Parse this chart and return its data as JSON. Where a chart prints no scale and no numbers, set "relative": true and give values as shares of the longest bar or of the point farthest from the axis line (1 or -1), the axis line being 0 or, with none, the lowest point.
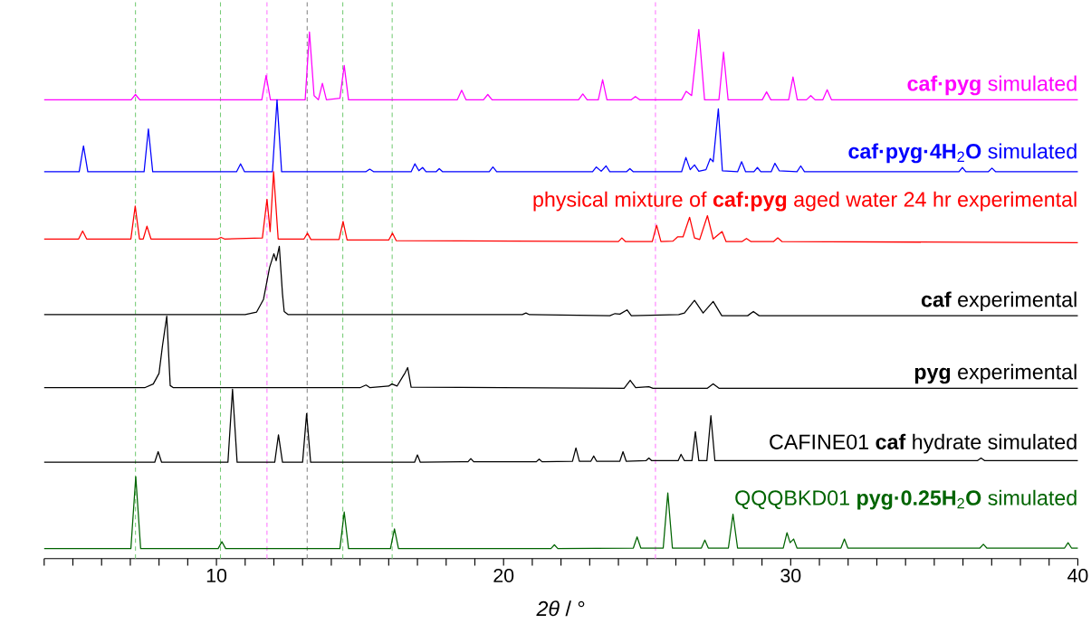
{
  "chart_data": {
    "type": "line",
    "relative": true,
    "xlabel": "*2θ* / °",
    "xlim": [
      4,
      40
    ],
    "xticks": [
      {
        "value": 4,
        "label": null
      },
      {
        "value": 5,
        "label": null
      },
      {
        "value": 6,
        "label": null
      },
      {
        "value": 7,
        "label": null
      },
      {
        "value": 8,
        "label": null
      },
      {
        "value": 9,
        "label": null
      },
      10,
      {
        "value": 11,
        "label": null
      },
      {
        "value": 12,
        "label": null
      },
      {
        "value": 13,
        "label": null
      },
      {
        "value": 14,
        "label": null
      },
      {
        "value": 15,
        "label": null
      },
      {
        "value": 16,
        "label": null
      },
      {
        "value": 17,
        "label": null
      },
      {
        "value": 18,
        "label": null
      },
      {
        "value": 19,
        "label": null
      },
      20,
      {
        "value": 21,
        "label": null
      },
      {
        "value": 22,
        "label": null
      },
      {
        "value": 23,
        "label": null
      },
      {
        "value": 24,
        "label": null
      },
      {
        "value": 25,
        "label": null
      },
      {
        "value": 26,
        "label": null
      },
      {
        "value": 27,
        "label": null
      },
      {
        "value": 28,
        "label": null
      },
      {
        "value": 29,
        "label": null
      },
      30,
      {
        "value": 31,
        "label": null
      },
      {
        "value": 32,
        "label": null
      },
      {
        "value": 33,
        "label": null
      },
      {
        "value": 34,
        "label": null
      },
      {
        "value": 35,
        "label": null
      },
      {
        "value": 36,
        "label": null
      },
      {
        "value": 37,
        "label": null
      },
      {
        "value": 38,
        "label": null
      },
      {
        "value": 39,
        "label": null
      },
      40
    ],
    "ref_lines": [
      {
        "axis": "x",
        "value": 7.18,
        "color": "#77cc77",
        "line_style": "dashed"
      },
      {
        "axis": "x",
        "value": 10.14,
        "color": "#77cc77",
        "line_style": "dashed"
      },
      {
        "axis": "x",
        "value": 11.76,
        "color": "#ff77ff",
        "line_style": "dashed"
      },
      {
        "axis": "x",
        "value": 13.16,
        "color": "#888888",
        "line_style": "dashed"
      },
      {
        "axis": "x",
        "value": 14.4,
        "color": "#77cc77",
        "line_style": "dashed"
      },
      {
        "axis": "x",
        "value": 16.12,
        "color": "#77cc77",
        "line_style": "dashed"
      },
      {
        "axis": "x",
        "value": 25.29,
        "color": "#ff77ff",
        "line_style": "dashed"
      }
    ],
    "series": [
      {
        "name": "**caf·pyg** simulated",
        "color": "#ff00ff",
        "x": [
          4,
          7.03,
          7.18,
          7.33,
          11.58,
          11.73,
          11.88,
          13.09,
          13.24,
          13.4,
          13.55,
          13.69,
          13.83,
          14.3,
          14.45,
          14.6,
          18.39,
          18.54,
          18.69,
          19.3,
          19.45,
          19.6,
          22.61,
          22.76,
          22.91,
          23.3,
          23.45,
          23.6,
          24.45,
          24.59,
          24.74,
          26.2,
          26.36,
          26.55,
          26.8,
          27.0,
          27.5,
          27.66,
          27.82,
          29.01,
          29.16,
          29.31,
          29.93,
          30.08,
          30.23,
          30.55,
          30.7,
          30.85,
          31.12,
          31.27,
          31.42,
          40
        ],
        "values": [
          0.867,
          0.867,
          0.877,
          0.867,
          0.867,
          0.913,
          0.867,
          0.867,
          0.995,
          0.875,
          0.867,
          0.898,
          0.867,
          0.87,
          0.932,
          0.867,
          0.867,
          0.885,
          0.867,
          0.867,
          0.877,
          0.867,
          0.867,
          0.878,
          0.867,
          0.867,
          0.905,
          0.867,
          0.867,
          0.873,
          0.867,
          0.867,
          0.883,
          0.875,
          1.0,
          0.867,
          0.867,
          0.957,
          0.867,
          0.867,
          0.882,
          0.867,
          0.867,
          0.91,
          0.867,
          0.867,
          0.875,
          0.867,
          0.867,
          0.886,
          0.867,
          0.867
        ]
      },
      {
        "name": "**caf·pyg·4H**$_{2}$**O** simulated",
        "color": "#0000ff",
        "x": [
          4,
          5.22,
          5.37,
          5.52,
          7.48,
          7.63,
          7.78,
          10.7,
          10.84,
          10.98,
          11.95,
          12.11,
          12.27,
          15.2,
          15.34,
          15.48,
          16.78,
          16.91,
          17.05,
          17.18,
          17.3,
          17.65,
          17.76,
          17.88,
          19.5,
          19.63,
          19.76,
          23.1,
          23.23,
          23.4,
          23.57,
          23.7,
          24.28,
          24.4,
          24.52,
          26.2,
          26.35,
          26.5,
          26.65,
          26.8,
          27.05,
          27.2,
          27.3,
          27.48,
          27.62,
          28.15,
          28.29,
          28.43,
          28.72,
          28.84,
          28.96,
          29.32,
          29.45,
          29.6,
          30.22,
          30.35,
          30.48,
          35.86,
          35.98,
          36.1,
          36.88,
          37.01,
          37.14,
          40
        ],
        "values": [
          0.731,
          0.731,
          0.78,
          0.731,
          0.731,
          0.812,
          0.731,
          0.731,
          0.746,
          0.731,
          0.731,
          0.867,
          0.731,
          0.731,
          0.736,
          0.731,
          0.731,
          0.746,
          0.733,
          0.739,
          0.731,
          0.731,
          0.737,
          0.731,
          0.731,
          0.74,
          0.731,
          0.731,
          0.74,
          0.732,
          0.742,
          0.731,
          0.731,
          0.737,
          0.731,
          0.731,
          0.758,
          0.735,
          0.744,
          0.732,
          0.735,
          0.756,
          0.75,
          0.85,
          0.733,
          0.731,
          0.75,
          0.731,
          0.731,
          0.739,
          0.731,
          0.731,
          0.747,
          0.733,
          0.731,
          0.742,
          0.731,
          0.731,
          0.739,
          0.731,
          0.731,
          0.738,
          0.731,
          0.731
        ]
      },
      {
        "name": "physical mixture of **caf:pyg** aged water 24 hr experimental",
        "color": "#ff0000",
        "x": [
          4,
          5.2,
          5.34,
          5.48,
          7.02,
          7.17,
          7.32,
          7.45,
          7.58,
          7.72,
          10.05,
          10.16,
          10.28,
          11.6,
          11.76,
          11.87,
          11.99,
          12.15,
          13.05,
          13.17,
          13.29,
          14.27,
          14.41,
          14.55,
          16.0,
          16.13,
          16.26,
          24.0,
          24.12,
          24.25,
          25.18,
          25.33,
          25.48,
          25.9,
          26.06,
          26.25,
          26.48,
          26.65,
          26.83,
          27.1,
          27.3,
          27.61,
          27.75,
          28.3,
          28.46,
          28.62,
          29.4,
          29.55,
          29.7,
          40
        ],
        "values": [
          0.604,
          0.604,
          0.619,
          0.604,
          0.604,
          0.666,
          0.604,
          0.604,
          0.628,
          0.604,
          0.604,
          0.607,
          0.604,
          0.606,
          0.679,
          0.618,
          0.731,
          0.604,
          0.604,
          0.615,
          0.603,
          0.603,
          0.637,
          0.602,
          0.602,
          0.615,
          0.601,
          0.599,
          0.606,
          0.599,
          0.599,
          0.63,
          0.599,
          0.6,
          0.608,
          0.608,
          0.645,
          0.606,
          0.603,
          0.648,
          0.604,
          0.618,
          0.599,
          0.599,
          0.605,
          0.599,
          0.599,
          0.606,
          0.599,
          0.597
        ]
      },
      {
        "name": "**caf** experimental",
        "color": "#000000",
        "x": [
          4,
          11.0,
          11.4,
          11.64,
          11.85,
          12.0,
          12.08,
          12.19,
          12.3,
          12.36,
          12.5,
          20.65,
          20.78,
          20.9,
          23.7,
          23.88,
          24.05,
          24.3,
          24.45,
          26.1,
          26.3,
          26.65,
          26.95,
          27.3,
          27.6,
          28.5,
          28.7,
          28.9,
          40
        ],
        "values": [
          0.461,
          0.461,
          0.466,
          0.49,
          0.55,
          0.576,
          0.563,
          0.59,
          0.5,
          0.467,
          0.461,
          0.461,
          0.464,
          0.461,
          0.459,
          0.463,
          0.462,
          0.47,
          0.459,
          0.461,
          0.464,
          0.488,
          0.464,
          0.486,
          0.459,
          0.459,
          0.467,
          0.459,
          0.459
        ]
      },
      {
        "name": "**pyg** experimental",
        "color": "#000000",
        "x": [
          4,
          7.5,
          7.8,
          8.0,
          8.12,
          8.27,
          8.39,
          8.5,
          15.0,
          15.21,
          15.35,
          16.0,
          16.11,
          16.29,
          16.5,
          16.57,
          16.66,
          16.78,
          24.2,
          24.41,
          24.6,
          25.06,
          25.2,
          27.1,
          27.3,
          27.5,
          40
        ],
        "values": [
          0.323,
          0.323,
          0.33,
          0.35,
          0.402,
          0.458,
          0.327,
          0.323,
          0.323,
          0.328,
          0.323,
          0.326,
          0.33,
          0.326,
          0.345,
          0.351,
          0.361,
          0.324,
          0.322,
          0.337,
          0.323,
          0.325,
          0.322,
          0.322,
          0.33,
          0.322,
          0.322
        ]
      },
      {
        "name": "CAFINE01 **caf** hydrate simulated",
        "color": "#000000",
        "x": [
          4,
          7.85,
          7.97,
          8.09,
          10.4,
          10.56,
          10.72,
          12.03,
          12.16,
          12.3,
          13.0,
          13.14,
          13.28,
          16.9,
          17.0,
          17.1,
          18.76,
          18.86,
          18.96,
          21.14,
          21.24,
          21.34,
          22.4,
          22.52,
          22.64,
          23.04,
          23.14,
          23.24,
          24.05,
          24.16,
          24.27,
          24.96,
          25.06,
          25.16,
          26.08,
          26.18,
          26.3,
          26.56,
          26.68,
          26.8,
          27.08,
          27.22,
          27.36,
          36.5,
          36.63,
          36.76,
          40
        ],
        "values": [
          0.182,
          0.182,
          0.202,
          0.182,
          0.182,
          0.32,
          0.182,
          0.182,
          0.234,
          0.182,
          0.182,
          0.274,
          0.182,
          0.182,
          0.196,
          0.182,
          0.183,
          0.189,
          0.183,
          0.183,
          0.188,
          0.183,
          0.184,
          0.209,
          0.184,
          0.184,
          0.194,
          0.184,
          0.184,
          0.202,
          0.184,
          0.185,
          0.19,
          0.185,
          0.185,
          0.197,
          0.185,
          0.185,
          0.24,
          0.185,
          0.185,
          0.27,
          0.185,
          0.185,
          0.19,
          0.185,
          0.185
        ]
      },
      {
        "name": "QQQBKD01 **pyg·0.25H**$_{2}$**O** simulated",
        "color": "#006400",
        "x": [
          4,
          7.02,
          7.19,
          7.36,
          10.06,
          10.19,
          10.32,
          14.3,
          14.45,
          14.6,
          16.06,
          16.2,
          16.34,
          21.65,
          21.77,
          21.89,
          24.52,
          24.65,
          24.78,
          25.56,
          25.72,
          25.88,
          26.89,
          27.01,
          27.13,
          27.83,
          27.99,
          28.15,
          29.74,
          29.87,
          29.98,
          30.1,
          30.22,
          31.75,
          31.87,
          31.99,
          36.59,
          36.71,
          36.83,
          39.54,
          39.66,
          39.78,
          40
        ],
        "values": [
          0.019,
          0.019,
          0.155,
          0.019,
          0.019,
          0.032,
          0.019,
          0.019,
          0.088,
          0.019,
          0.019,
          0.056,
          0.019,
          0.019,
          0.026,
          0.019,
          0.02,
          0.041,
          0.02,
          0.02,
          0.124,
          0.02,
          0.02,
          0.035,
          0.02,
          0.02,
          0.084,
          0.02,
          0.02,
          0.049,
          0.03,
          0.037,
          0.02,
          0.02,
          0.037,
          0.02,
          0.02,
          0.027,
          0.02,
          0.02,
          0.03,
          0.02,
          0.02
        ]
      }
    ]
  }
}
